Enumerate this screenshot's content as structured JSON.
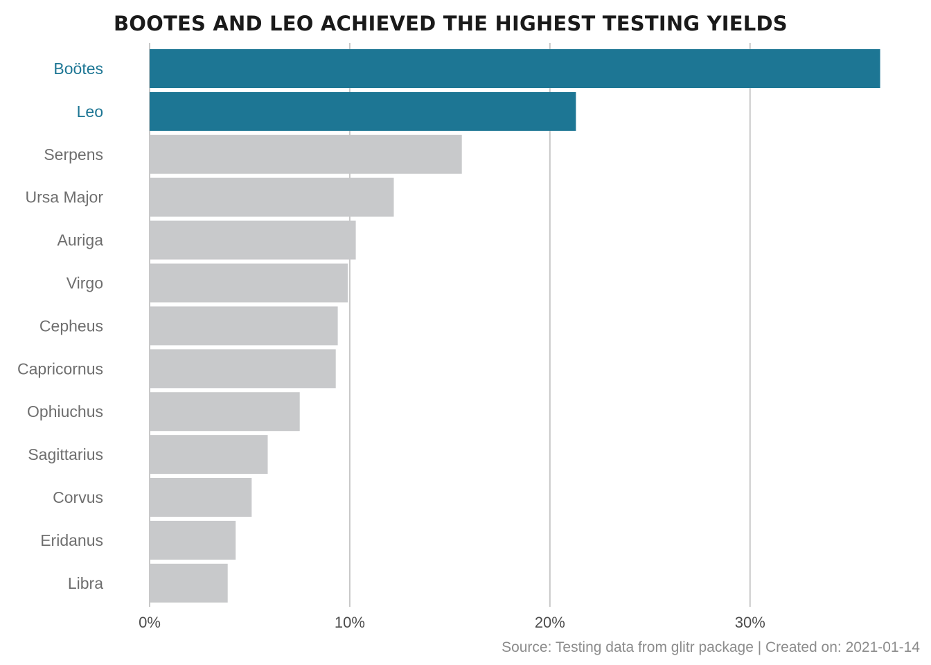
{
  "chart_data": {
    "type": "bar",
    "orientation": "horizontal",
    "title": "BOOTES AND LEO ACHIEVED THE HIGHEST TESTING YIELDS",
    "caption": "Source: Testing data from glitr package | Created on: 2021-01-14",
    "xlabel": "",
    "ylabel": "",
    "xlim": [
      0,
      0.37
    ],
    "x_ticks": [
      {
        "value": 0,
        "label": "0%"
      },
      {
        "value": 0.1,
        "label": "10%"
      },
      {
        "value": 0.2,
        "label": "20%"
      },
      {
        "value": 0.3,
        "label": "30%"
      }
    ],
    "grid": "vertical major lines",
    "legend": "none",
    "categories": [
      "Boötes",
      "Leo",
      "Serpens",
      "Ursa Major",
      "Auriga",
      "Virgo",
      "Cepheus",
      "Capricornus",
      "Ophiuchus",
      "Sagittarius",
      "Corvus",
      "Eridanus",
      "Libra"
    ],
    "values": [
      0.365,
      0.213,
      0.156,
      0.122,
      0.103,
      0.099,
      0.094,
      0.093,
      0.075,
      0.059,
      0.051,
      0.043,
      0.039
    ],
    "highlighted": [
      "Boötes",
      "Leo"
    ],
    "colors": {
      "highlight": "#1d7694",
      "default": "#c8c9cb",
      "highlight_label": "#1d7694",
      "default_label": "#6e6e6e"
    }
  }
}
